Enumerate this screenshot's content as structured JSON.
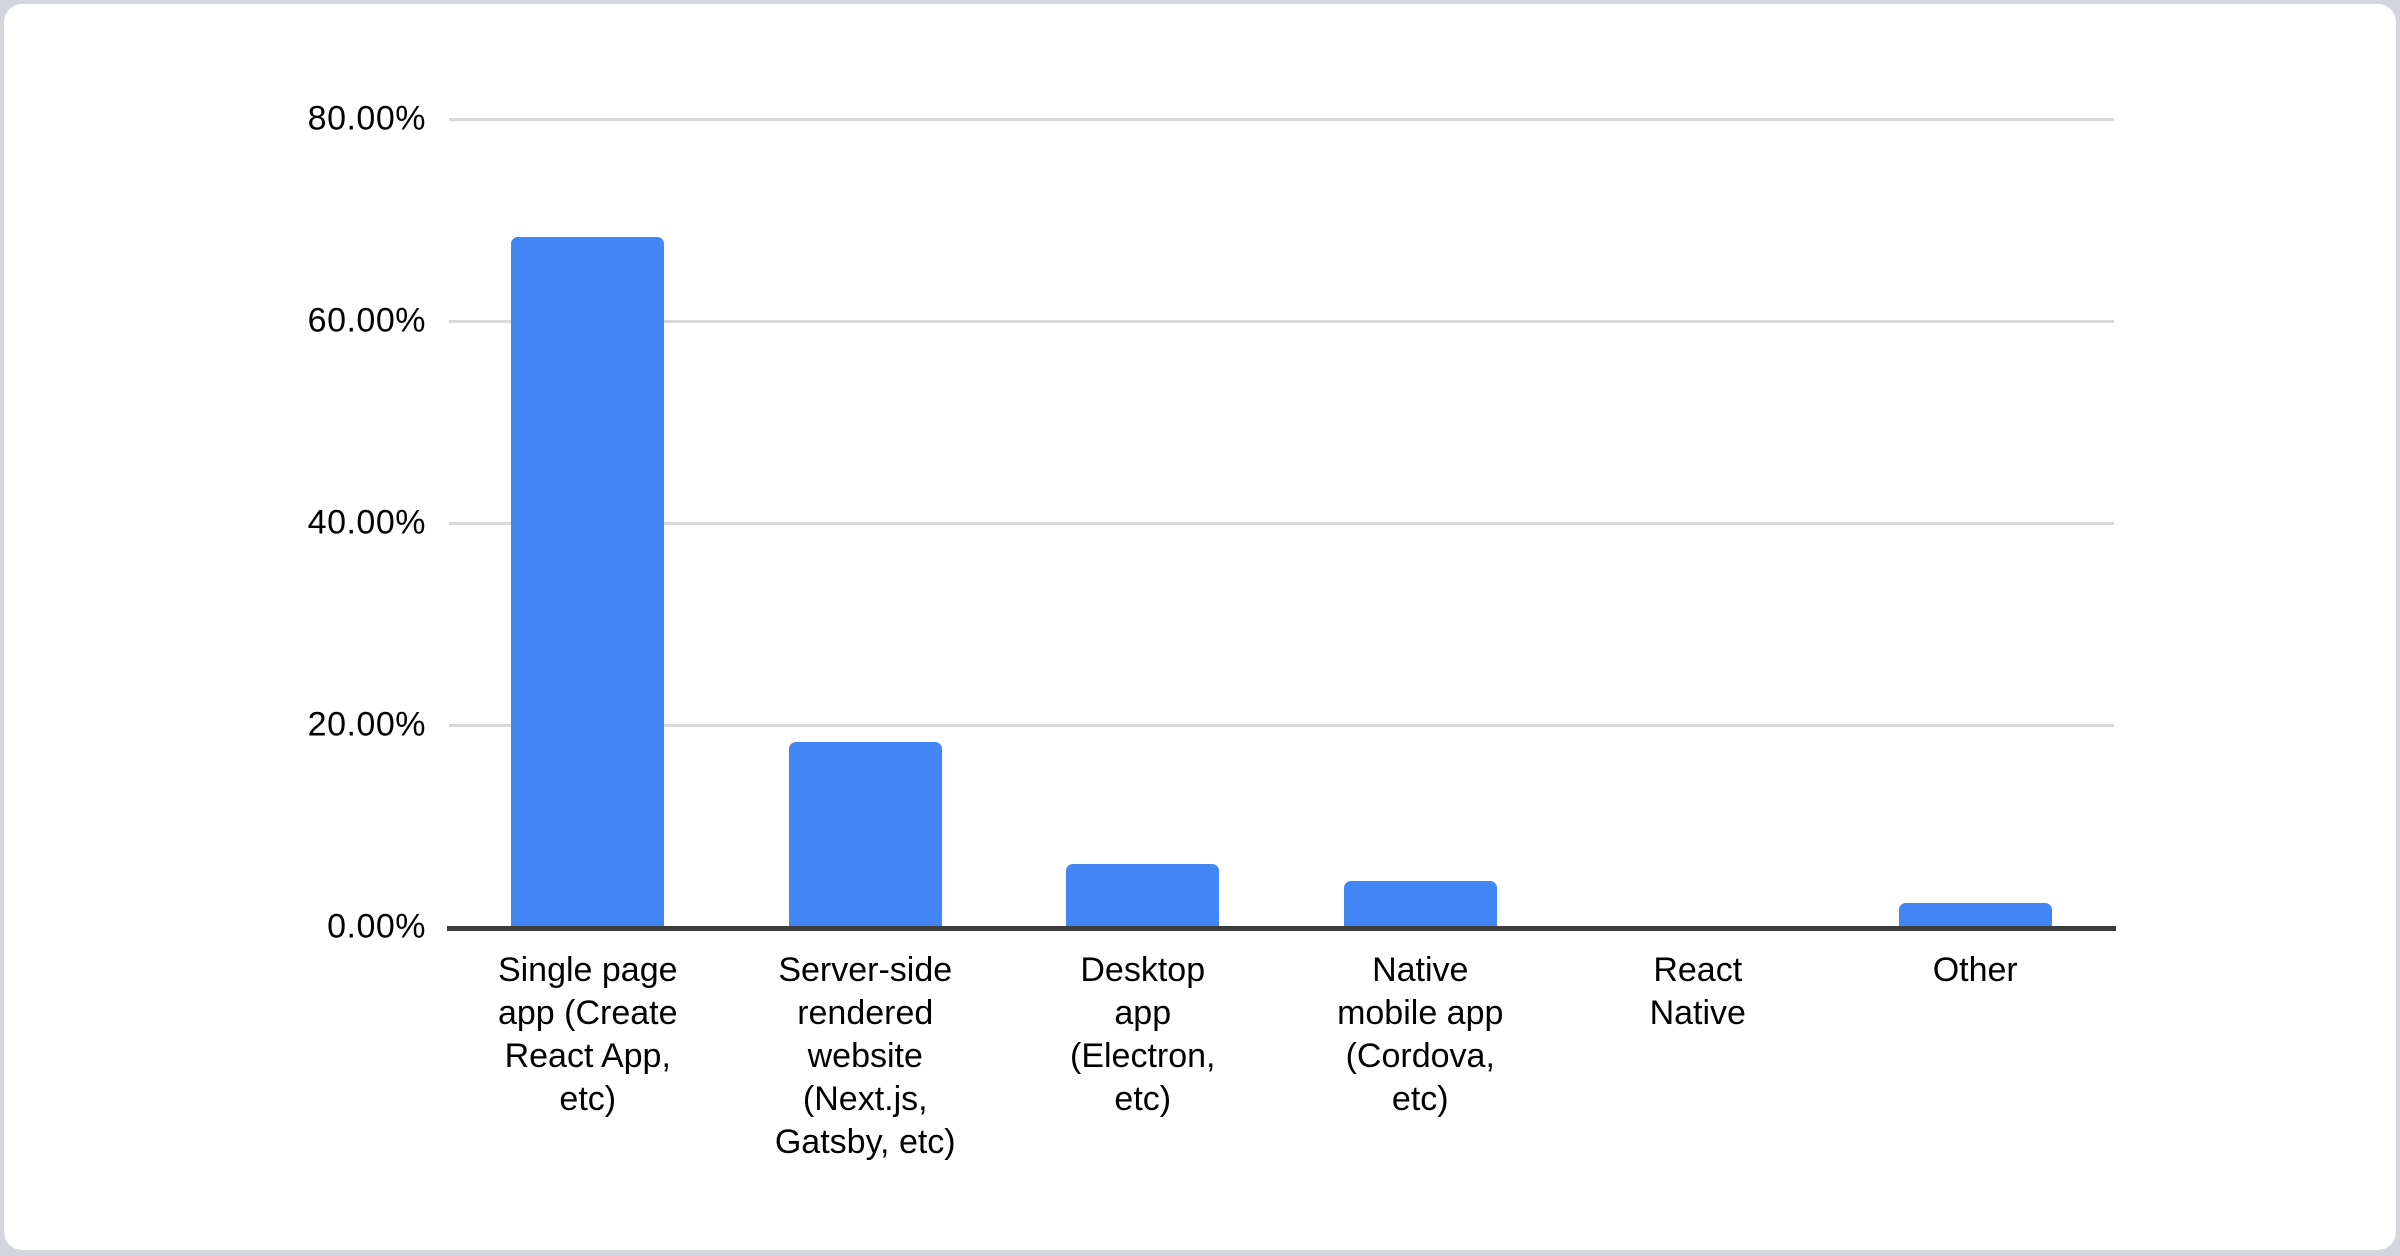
{
  "chart_data": {
    "type": "bar",
    "title": "",
    "xlabel": "",
    "ylabel": "",
    "categories": [
      "Single page app (Create React App, etc)",
      "Server-side rendered website (Next.js, Gatsby, etc)",
      "Desktop app (Electron, etc)",
      "Native mobile app (Cordova, etc)",
      "React Native",
      "Other"
    ],
    "categories_display": [
      "Single page\napp (Create\nReact App,\netc)",
      "Server-side\nrendered\nwebsite\n(Next.js,\nGatsby, etc)",
      "Desktop\napp\n(Electron,\netc)",
      "Native\nmobile app\n(Cordova,\netc)",
      "React\nNative",
      "Other"
    ],
    "values": [
      68.3,
      18.3,
      6.2,
      4.6,
      0,
      2.4
    ],
    "unit": "%",
    "ylim": [
      0,
      80
    ],
    "y_ticks": [
      "80.00%",
      "60.00%",
      "40.00%",
      "20.00%",
      "0.00%"
    ],
    "grid": true,
    "legend": "none",
    "colors": {
      "bar": "#4285f4",
      "gridline": "#d9d9d9",
      "axis_line": "#3c3c3c",
      "text": "#000000",
      "card_background": "#ffffff",
      "page_background": "#d2d5d9"
    }
  }
}
